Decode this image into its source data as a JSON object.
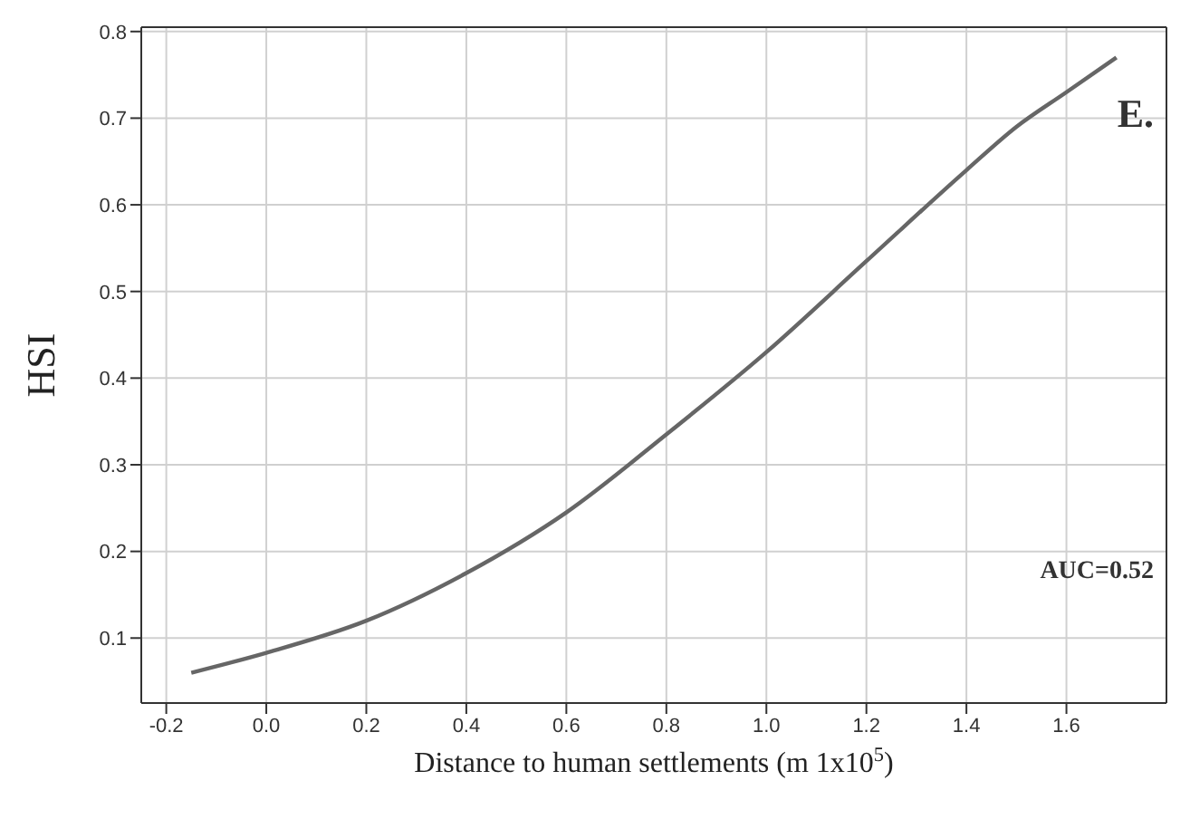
{
  "chart_data": {
    "type": "line",
    "xlabel": "Distance to human settlements (m 1x10$^{5}$)",
    "ylabel": "HSI",
    "annotations": [
      "E.",
      "AUC=0.52"
    ],
    "x": [
      -0.15,
      0,
      0.2,
      0.4,
      0.6,
      0.8,
      1.0,
      1.2,
      1.4,
      1.5,
      1.6,
      1.7
    ],
    "series": [
      {
        "color": "#666666",
        "values": [
          0.06,
          0.083,
          0.12,
          0.175,
          0.245,
          0.335,
          0.43,
          0.535,
          0.64,
          0.69,
          0.73,
          0.77
        ]
      }
    ],
    "xlim": [
      -0.25,
      1.8
    ],
    "xticks": [
      {
        "value": -0.2,
        "label": "-0.2"
      },
      {
        "value": 0,
        "label": "0.0"
      },
      {
        "value": 0.2,
        "label": "0.2"
      },
      {
        "value": 0.4,
        "label": "0.4"
      },
      {
        "value": 0.6,
        "label": "0.6"
      },
      {
        "value": 0.8,
        "label": "0.8"
      },
      {
        "value": 1,
        "label": "1.0"
      },
      {
        "value": 1.2,
        "label": "1.2"
      },
      {
        "value": 1.4,
        "label": "1.4"
      },
      {
        "value": 1.6,
        "label": "1.6"
      }
    ],
    "ylim": [
      0.025,
      0.805
    ],
    "yticks": [
      0.1,
      0.2,
      0.3,
      0.4,
      0.5,
      0.6,
      0.7,
      0.8
    ],
    "grid": true,
    "marker": "none",
    "line_style": "solid"
  }
}
